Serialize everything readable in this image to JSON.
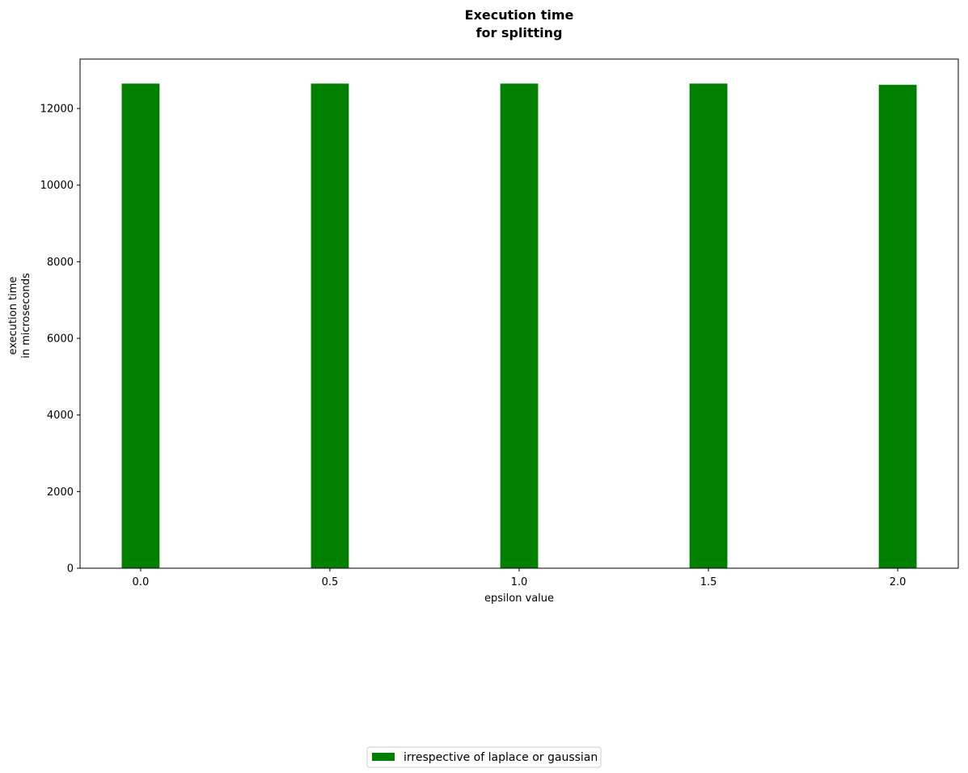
{
  "chart_data": {
    "type": "bar",
    "title_lines": [
      "Execution time",
      "for splitting"
    ],
    "xlabel": "epsilon value",
    "ylabel_lines": [
      "execution time",
      "in microseconds"
    ],
    "x": [
      0.0,
      0.5,
      1.0,
      1.5,
      2.0
    ],
    "x_tick_labels": [
      "0.0",
      "0.5",
      "1.0",
      "1.5",
      "2.0"
    ],
    "xlim": [
      -0.16,
      2.16
    ],
    "ylim": [
      0,
      13290
    ],
    "y_ticks": [
      0,
      2000,
      4000,
      6000,
      8000,
      10000,
      12000
    ],
    "y_tick_labels": [
      "0",
      "2000",
      "4000",
      "6000",
      "8000",
      "10000",
      "12000"
    ],
    "bar_width": 0.1,
    "series": [
      {
        "name": "irrespective of laplace or gaussian",
        "color": "#008000",
        "values": [
          12650,
          12650,
          12650,
          12650,
          12620
        ]
      }
    ],
    "legend_position": "bottom-center",
    "grid": false
  }
}
